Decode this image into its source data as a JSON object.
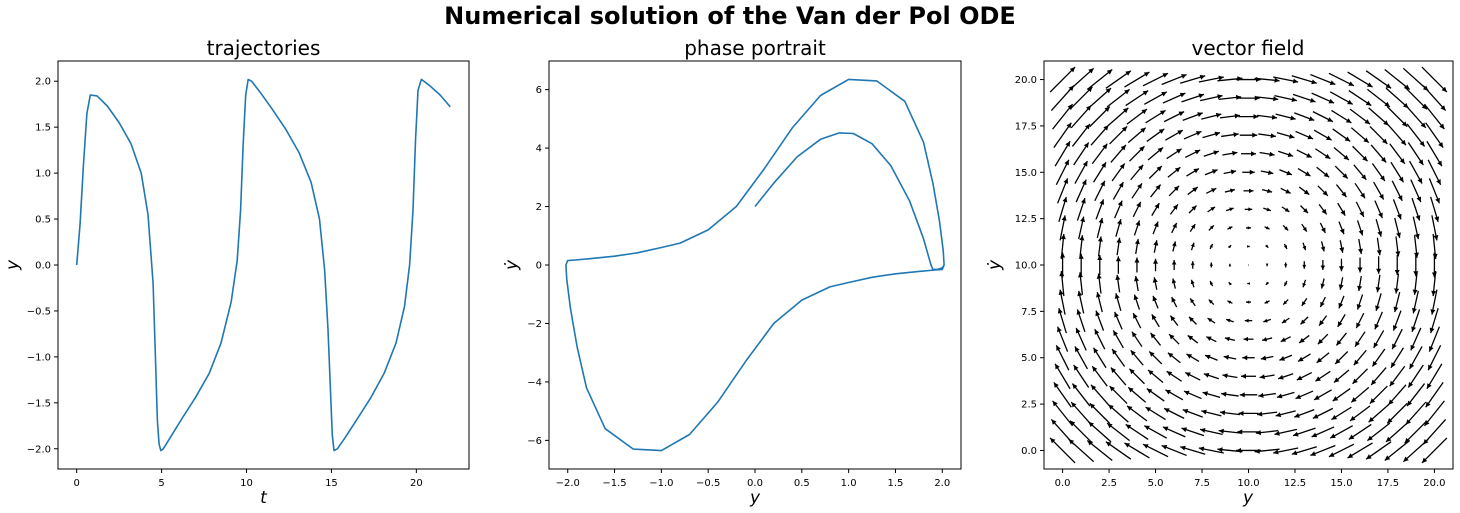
{
  "figure": {
    "title": "Numerical solution of the Van der Pol ODE"
  },
  "chart_data": [
    {
      "type": "line",
      "title": "trajectories",
      "xlabel": "t",
      "ylabel": "y",
      "xlim": [
        -1.1,
        23.1
      ],
      "ylim": [
        -2.22,
        2.22
      ],
      "xticks": [
        0,
        5,
        10,
        15,
        20
      ],
      "xtick_labels": [
        "0",
        "5",
        "10",
        "15",
        "20"
      ],
      "yticks": [
        -2.0,
        -1.5,
        -1.0,
        -0.5,
        0.0,
        0.5,
        1.0,
        1.5,
        2.0
      ],
      "ytick_labels": [
        "−2.0",
        "−1.5",
        "−1.0",
        "−0.5",
        "0.0",
        "0.5",
        "1.0",
        "1.5",
        "2.0"
      ],
      "grid": false,
      "color": "#1f77b4",
      "series": [
        {
          "x": [
            0,
            0.2,
            0.4,
            0.6,
            0.8,
            1.2,
            1.8,
            2.5,
            3.2,
            3.8,
            4.2,
            4.5,
            4.65,
            4.75,
            4.85,
            4.95,
            5.1,
            5.5,
            6.2,
            7.0,
            7.8,
            8.5,
            9.1,
            9.45,
            9.65,
            9.8,
            9.95,
            10.1,
            10.3,
            10.8,
            11.5,
            12.3,
            13.1,
            13.8,
            14.3,
            14.6,
            14.8,
            14.95,
            15.05,
            15.15,
            15.35,
            15.8,
            16.5,
            17.3,
            18.1,
            18.8,
            19.3,
            19.6,
            19.8,
            19.95,
            20.1,
            20.3,
            20.8,
            21.4,
            22.0
          ],
          "y": [
            0.0,
            0.45,
            1.1,
            1.65,
            1.85,
            1.84,
            1.73,
            1.55,
            1.32,
            1.0,
            0.55,
            -0.2,
            -1.1,
            -1.7,
            -1.95,
            -2.02,
            -2.0,
            -1.88,
            -1.67,
            -1.44,
            -1.18,
            -0.85,
            -0.4,
            0.05,
            0.6,
            1.3,
            1.85,
            2.02,
            2.0,
            1.88,
            1.7,
            1.48,
            1.22,
            0.9,
            0.5,
            -0.05,
            -0.7,
            -1.4,
            -1.85,
            -2.02,
            -2.0,
            -1.88,
            -1.68,
            -1.45,
            -1.18,
            -0.85,
            -0.45,
            0.0,
            0.6,
            1.35,
            1.9,
            2.02,
            1.95,
            1.85,
            1.72
          ]
        }
      ]
    },
    {
      "type": "line",
      "title": "phase portrait",
      "xlabel": "y",
      "ylabel": "ẏ",
      "xlim": [
        -2.2,
        2.2
      ],
      "ylim": [
        -6.98,
        6.98
      ],
      "xticks": [
        -2.0,
        -1.5,
        -1.0,
        -0.5,
        0.0,
        0.5,
        1.0,
        1.5,
        2.0
      ],
      "xtick_labels": [
        "−2.0",
        "−1.5",
        "−1.0",
        "−0.5",
        "0.0",
        "0.5",
        "1.0",
        "1.5",
        "2.0"
      ],
      "yticks": [
        -6,
        -4,
        -2,
        0,
        2,
        4,
        6
      ],
      "ytick_labels": [
        "−6",
        "−4",
        "−2",
        "0",
        "2",
        "4",
        "6"
      ],
      "grid": false,
      "color": "#1f77b4",
      "series": [
        {
          "x": [
            0.0,
            0.2,
            0.45,
            0.7,
            0.9,
            1.05,
            1.25,
            1.45,
            1.65,
            1.8,
            1.88,
            1.9,
            1.95,
            2.0,
            2.02,
            2.01,
            1.97,
            1.9,
            1.8,
            1.6,
            1.3,
            1.0,
            0.7,
            0.4,
            0.1,
            -0.2,
            -0.5,
            -0.8,
            -1.0,
            -1.25,
            -1.5,
            -1.75,
            -1.92,
            -2.0,
            -2.02,
            -2.01,
            -1.97,
            -1.9,
            -1.8,
            -1.6,
            -1.3,
            -1.0,
            -0.7,
            -0.4,
            -0.1,
            0.2,
            0.5,
            0.8,
            1.0,
            1.25,
            1.5,
            1.75,
            1.92,
            2.0,
            2.02
          ],
          "y": [
            2.0,
            2.8,
            3.7,
            4.3,
            4.52,
            4.5,
            4.15,
            3.4,
            2.2,
            0.9,
            0.0,
            -0.15,
            -0.15,
            -0.1,
            0.0,
            0.5,
            1.5,
            2.8,
            4.2,
            5.6,
            6.3,
            6.35,
            5.8,
            4.7,
            3.3,
            2.0,
            1.2,
            0.75,
            0.6,
            0.42,
            0.3,
            0.22,
            0.17,
            0.15,
            0.0,
            -0.5,
            -1.5,
            -2.8,
            -4.2,
            -5.6,
            -6.3,
            -6.35,
            -5.8,
            -4.7,
            -3.3,
            -2.0,
            -1.2,
            -0.75,
            -0.6,
            -0.42,
            -0.3,
            -0.22,
            -0.17,
            -0.15,
            0.0
          ]
        }
      ]
    },
    {
      "type": "quiver",
      "title": "vector field",
      "xlabel": "y",
      "ylabel": "ẏ",
      "xlim": [
        -1.0,
        21.0
      ],
      "ylim": [
        -1.0,
        21.0
      ],
      "xticks": [
        0.0,
        2.5,
        5.0,
        7.5,
        10.0,
        12.5,
        15.0,
        17.5,
        20.0
      ],
      "xtick_labels": [
        "0.0",
        "2.5",
        "5.0",
        "7.5",
        "10.0",
        "12.5",
        "15.0",
        "17.5",
        "20.0"
      ],
      "yticks": [
        0.0,
        2.5,
        5.0,
        7.5,
        10.0,
        12.5,
        15.0,
        17.5,
        20.0
      ],
      "ytick_labels": [
        "0.0",
        "2.5",
        "5.0",
        "7.5",
        "10.0",
        "12.5",
        "15.0",
        "17.5",
        "20.0"
      ],
      "grid": false,
      "color": "#000000",
      "grid_x": [
        0,
        1,
        2,
        3,
        4,
        5,
        6,
        7,
        8,
        9,
        10,
        11,
        12,
        13,
        14,
        15,
        16,
        17,
        18,
        19,
        20
      ],
      "grid_y": [
        0,
        1,
        2,
        3,
        4,
        5,
        6,
        7,
        8,
        9,
        10,
        11,
        12,
        13,
        14,
        15,
        16,
        17,
        18,
        19,
        20
      ],
      "field": "u = y - 10, v = -(x - 10)"
    }
  ]
}
